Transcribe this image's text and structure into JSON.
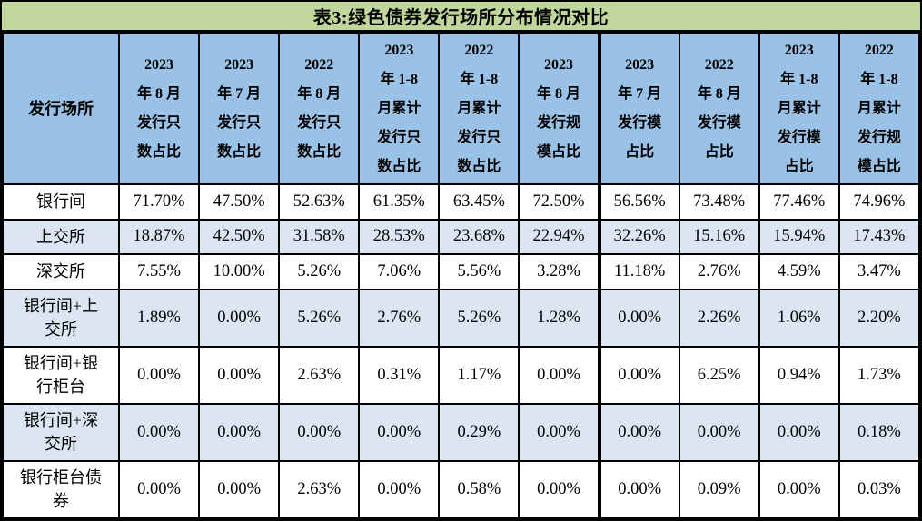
{
  "title": "表3:绿色债券发行场所分布情况对比",
  "colors": {
    "title_bg": "#c1d69b",
    "header_bg": "#9ac1e6",
    "row_stripe_bg": "#dce6f2",
    "row_bg": "#ffffff",
    "border": "#000000",
    "text": "#000000"
  },
  "table": {
    "columns_display": [
      "发行场所",
      "2023\n年 8 月\n发行只\n数占比",
      "2023\n年 7 月\n发行只\n数占比",
      "2022\n年 8 月\n发行只\n数占比",
      "2023\n年 1-8\n月累计\n发行只\n数占比",
      "2022\n年 1-8\n月累计\n发行只\n数占比",
      "2023\n年 8 月\n发行规\n模占比",
      "2023\n年 7 月\n发行模\n占比",
      "2022\n年 8 月\n发行模\n占比",
      "2023\n年 1-8\n月累计\n发行模\n占比",
      "2022\n年 1-8\n月累计\n发行规\n模占比"
    ],
    "labels_display": [
      "银行间",
      "上交所",
      "深交所",
      "银行间+上\n交所",
      "银行间+银\n行柜台",
      "银行间+深\n交所",
      "银行柜台债\n券"
    ]
  },
  "chart_data": {
    "type": "table",
    "title": "表3:绿色债券发行场所分布情况对比",
    "columns": [
      "发行场所",
      "2023年8月发行只数占比",
      "2023年7月发行只数占比",
      "2022年8月发行只数占比",
      "2023年1-8月累计发行只数占比",
      "2022年1-8月累计发行只数占比",
      "2023年8月发行规模占比",
      "2023年7月发行模占比",
      "2022年8月发行模占比",
      "2023年1-8月累计发行模占比",
      "2022年1-8月累计发行规模占比"
    ],
    "rows": [
      {
        "label": "银行间",
        "values": [
          "71.70%",
          "47.50%",
          "52.63%",
          "61.35%",
          "63.45%",
          "72.50%",
          "56.56%",
          "73.48%",
          "77.46%",
          "74.96%"
        ]
      },
      {
        "label": "上交所",
        "values": [
          "18.87%",
          "42.50%",
          "31.58%",
          "28.53%",
          "23.68%",
          "22.94%",
          "32.26%",
          "15.16%",
          "15.94%",
          "17.43%"
        ]
      },
      {
        "label": "深交所",
        "values": [
          "7.55%",
          "10.00%",
          "5.26%",
          "7.06%",
          "5.56%",
          "3.28%",
          "11.18%",
          "2.76%",
          "4.59%",
          "3.47%"
        ]
      },
      {
        "label": "银行间+上交所",
        "values": [
          "1.89%",
          "0.00%",
          "5.26%",
          "2.76%",
          "5.26%",
          "1.28%",
          "0.00%",
          "2.26%",
          "1.06%",
          "2.20%"
        ]
      },
      {
        "label": "银行间+银行柜台",
        "values": [
          "0.00%",
          "0.00%",
          "2.63%",
          "0.31%",
          "1.17%",
          "0.00%",
          "0.00%",
          "6.25%",
          "0.94%",
          "1.73%"
        ]
      },
      {
        "label": "银行间+深交所",
        "values": [
          "0.00%",
          "0.00%",
          "0.00%",
          "0.00%",
          "0.29%",
          "0.00%",
          "0.00%",
          "0.00%",
          "0.00%",
          "0.18%"
        ]
      },
      {
        "label": "银行柜台债券",
        "values": [
          "0.00%",
          "0.00%",
          "2.63%",
          "0.00%",
          "0.58%",
          "0.00%",
          "0.00%",
          "0.09%",
          "0.00%",
          "0.03%"
        ]
      }
    ]
  }
}
